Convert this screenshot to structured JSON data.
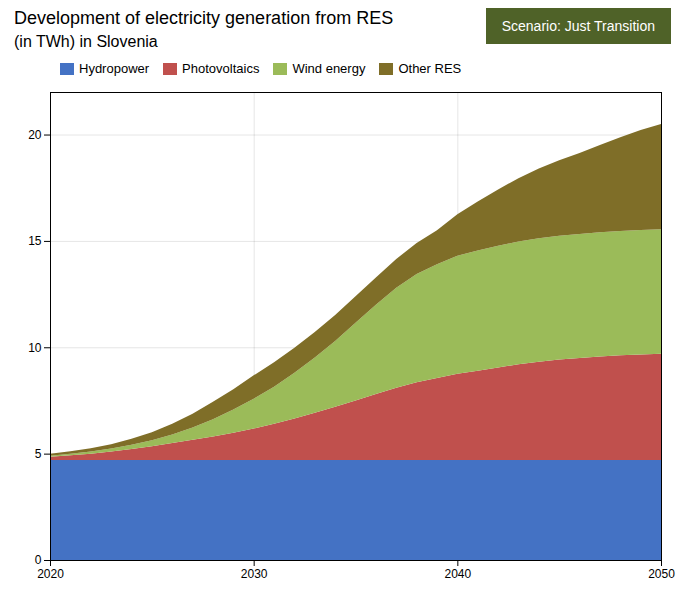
{
  "chart_data": {
    "type": "area",
    "title": "Development of electricity generation from RES",
    "subtitle": "(in TWh) in Slovenia",
    "annotations": [
      {
        "text": "Scenario: Just Transition",
        "color": "#4F6228"
      }
    ],
    "x": [
      2020,
      2021,
      2022,
      2023,
      2024,
      2025,
      2026,
      2027,
      2028,
      2029,
      2030,
      2031,
      2032,
      2033,
      2034,
      2035,
      2036,
      2037,
      2038,
      2039,
      2040,
      2041,
      2042,
      2043,
      2044,
      2045,
      2046,
      2047,
      2048,
      2049,
      2050
    ],
    "series": [
      {
        "name": "Hydropower",
        "color": "#4472C4",
        "values": [
          4.7,
          4.7,
          4.7,
          4.7,
          4.7,
          4.7,
          4.7,
          4.7,
          4.7,
          4.7,
          4.7,
          4.7,
          4.7,
          4.7,
          4.7,
          4.7,
          4.7,
          4.7,
          4.7,
          4.7,
          4.7,
          4.7,
          4.7,
          4.7,
          4.7,
          4.7,
          4.7,
          4.7,
          4.7,
          4.7,
          4.7
        ]
      },
      {
        "name": "Photovoltaics",
        "color": "#C0504D",
        "values": [
          0.15,
          0.22,
          0.3,
          0.4,
          0.52,
          0.65,
          0.8,
          0.95,
          1.1,
          1.28,
          1.48,
          1.7,
          1.95,
          2.22,
          2.5,
          2.8,
          3.1,
          3.4,
          3.65,
          3.85,
          4.05,
          4.2,
          4.35,
          4.5,
          4.62,
          4.72,
          4.8,
          4.87,
          4.92,
          4.96,
          5.0
        ]
      },
      {
        "name": "Wind energy",
        "color": "#9BBB59",
        "values": [
          0.05,
          0.07,
          0.1,
          0.14,
          0.2,
          0.28,
          0.4,
          0.58,
          0.82,
          1.1,
          1.4,
          1.75,
          2.15,
          2.6,
          3.1,
          3.65,
          4.2,
          4.7,
          5.1,
          5.35,
          5.55,
          5.65,
          5.72,
          5.77,
          5.8,
          5.82,
          5.83,
          5.84,
          5.85,
          5.85,
          5.85
        ]
      },
      {
        "name": "Other RES",
        "color": "#7F6E28",
        "values": [
          0.1,
          0.12,
          0.15,
          0.2,
          0.28,
          0.37,
          0.5,
          0.65,
          0.82,
          0.95,
          1.1,
          1.15,
          1.18,
          1.2,
          1.22,
          1.25,
          1.28,
          1.35,
          1.45,
          1.6,
          1.95,
          2.3,
          2.65,
          2.98,
          3.28,
          3.55,
          3.8,
          4.1,
          4.4,
          4.7,
          4.95
        ]
      }
    ],
    "xlim": [
      2020,
      2050
    ],
    "xticks": [
      2020,
      2030,
      2040,
      2050
    ],
    "ylim": [
      0,
      22
    ],
    "yticks": [
      0,
      5,
      10,
      15,
      20
    ],
    "stacked": true,
    "grid": true,
    "legend": "top-left"
  }
}
